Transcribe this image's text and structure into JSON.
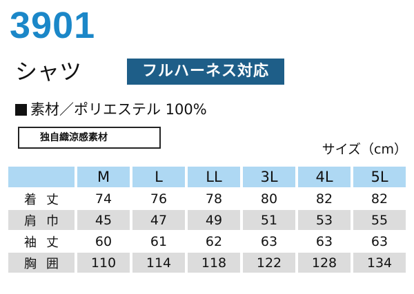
{
  "model_number": "3901",
  "product_name": "シャツ",
  "badge": "フルハーネス対応",
  "material": {
    "bullet": "■",
    "text": "素材／ポリエステル 100%"
  },
  "feature_label": "独自織涼感素材",
  "unit_label": "サイズ（cm）",
  "colors": {
    "model_number": "#1b87c8",
    "badge_bg": "#1e5e88",
    "header_bg": "#aed8f3",
    "stripe_bg": "#dcdcdc"
  },
  "size_table": {
    "headers": [
      "",
      "M",
      "L",
      "LL",
      "3L",
      "4L",
      "5L"
    ],
    "rows": [
      {
        "label": "着丈",
        "values": [
          "74",
          "76",
          "78",
          "80",
          "82",
          "82"
        ]
      },
      {
        "label": "肩巾",
        "values": [
          "45",
          "47",
          "49",
          "51",
          "53",
          "55"
        ]
      },
      {
        "label": "袖丈",
        "values": [
          "60",
          "61",
          "62",
          "63",
          "63",
          "63"
        ]
      },
      {
        "label": "胸囲",
        "values": [
          "110",
          "114",
          "118",
          "122",
          "128",
          "134"
        ]
      }
    ]
  }
}
